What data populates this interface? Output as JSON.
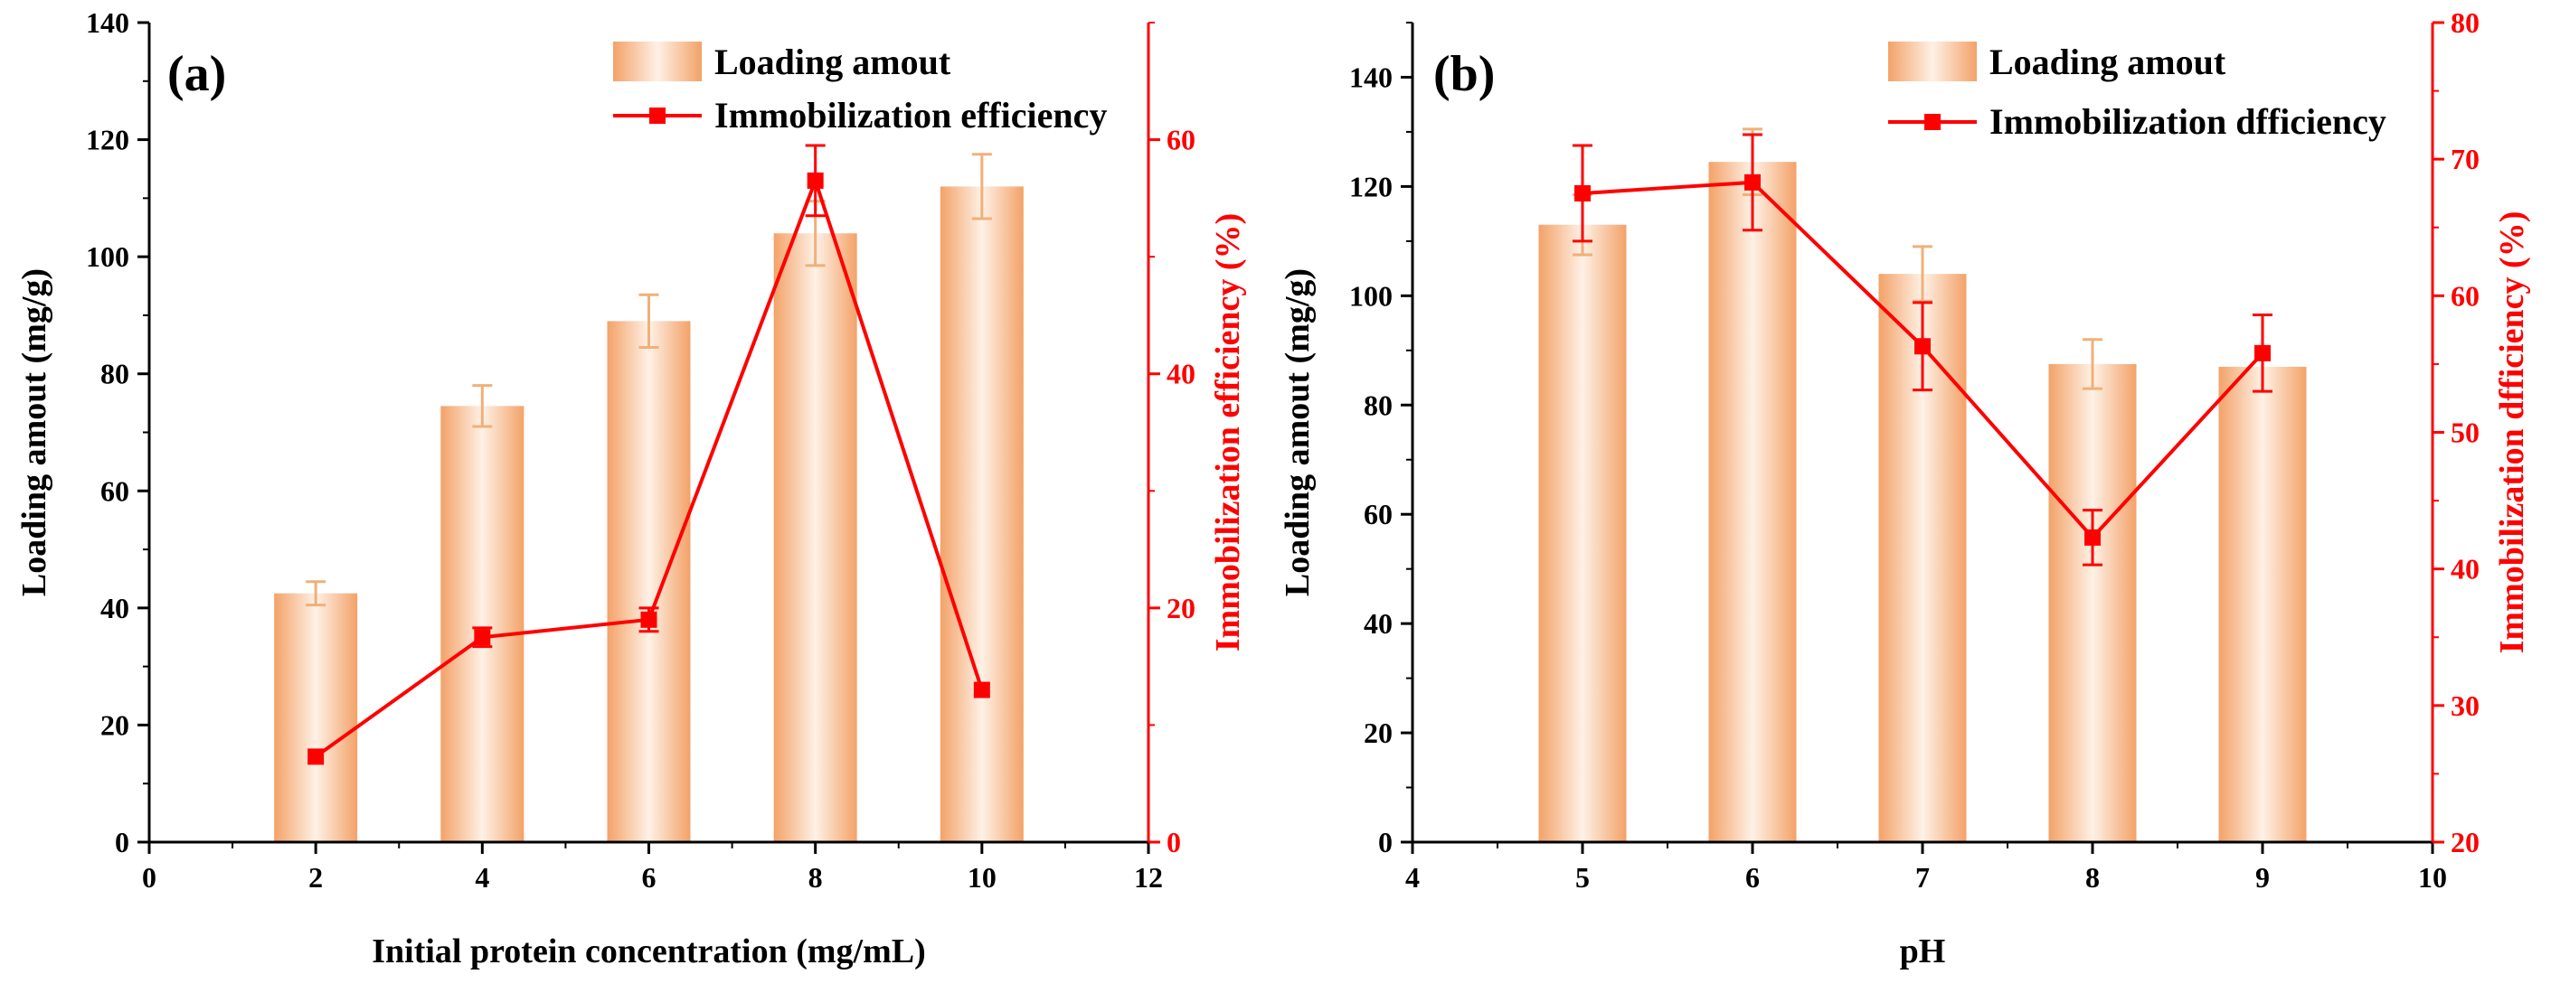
{
  "colors": {
    "bar_center": "#fef1e6",
    "bar_edge": "#f3a268",
    "error_bar": "#f0b079",
    "line": "#ff0000",
    "axis": "#000000",
    "right_axis": "#ff0000"
  },
  "chart_data": [
    {
      "type": "bar",
      "panel_label": "(a)",
      "xlabel": "Initial protein concentration (mg/mL)",
      "ylabel": "Loading amout  (mg/g)",
      "y2label": "Immobilization efficiency (%)",
      "xlim": [
        0,
        12
      ],
      "ylim": [
        0,
        140
      ],
      "y2lim": [
        0,
        70
      ],
      "x_ticks": [
        0,
        2,
        4,
        6,
        8,
        10,
        12
      ],
      "y_ticks": [
        0,
        20,
        40,
        60,
        80,
        100,
        120,
        140
      ],
      "y2_ticks": [
        0,
        20,
        40,
        60
      ],
      "legend_position": "top-right",
      "series": [
        {
          "name": "Loading amout",
          "kind": "bar",
          "axis": "left",
          "x": [
            2,
            4,
            6,
            8,
            10
          ],
          "values": [
            42.5,
            74.5,
            89,
            104,
            112
          ],
          "errors": [
            2,
            3.5,
            4.5,
            5.5,
            5.5
          ]
        },
        {
          "name": "Immobilization efficiency",
          "kind": "line",
          "axis": "right",
          "x": [
            2,
            4,
            6,
            8,
            10
          ],
          "values": [
            7.3,
            17.5,
            19,
            56.5,
            13
          ],
          "errors": [
            0,
            0.8,
            1.0,
            3.0,
            0
          ]
        }
      ]
    },
    {
      "type": "bar",
      "panel_label": "(b)",
      "xlabel": "pH",
      "ylabel": "Loading amout  (mg/g)",
      "y2label": "Immobilization dfficiency (%)",
      "xlim": [
        4,
        10
      ],
      "ylim": [
        0,
        150
      ],
      "y2lim": [
        20,
        80
      ],
      "x_ticks": [
        4,
        5,
        6,
        7,
        8,
        9,
        10
      ],
      "y_ticks": [
        0,
        20,
        40,
        60,
        80,
        100,
        120,
        140
      ],
      "y2_ticks": [
        20,
        30,
        40,
        50,
        60,
        70,
        80
      ],
      "legend_position": "top-right",
      "series": [
        {
          "name": "Loading amout",
          "kind": "bar",
          "axis": "left",
          "x": [
            5,
            6,
            7,
            8,
            9
          ],
          "values": [
            113,
            124.5,
            104,
            87.5,
            87
          ],
          "errors": [
            5.5,
            6,
            5,
            4.5,
            0
          ]
        },
        {
          "name": "Immobilization dfficiency",
          "kind": "line",
          "axis": "right",
          "x": [
            5,
            6,
            7,
            8,
            9
          ],
          "values": [
            67.5,
            68.3,
            56.3,
            42.3,
            55.8
          ],
          "errors": [
            3.5,
            3.5,
            3.2,
            2.0,
            2.8
          ]
        }
      ]
    }
  ]
}
